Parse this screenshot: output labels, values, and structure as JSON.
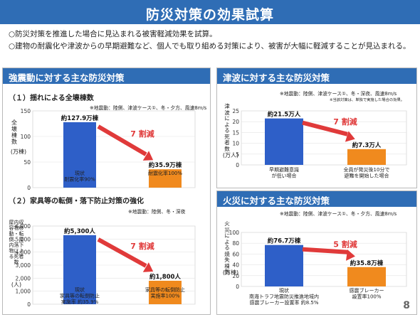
{
  "title": "防災対策の効果試算",
  "intro": [
    "○防災対策を推進した場合に見込まれる被害軽減効果を試算。",
    "○建物の耐震化や津波からの早期避難など、個人でも取り組める対策により、被害が大幅に軽減することが見込まれる。"
  ],
  "colors": {
    "accent": "#2f6db5",
    "bar_blue": "#2e5fc8",
    "bar_orange": "#f08a1e",
    "arrow_red": "#e03a3a"
  },
  "panels": {
    "quake": {
      "heading": "強震動に対する主な防災対策",
      "sub1": "（１）揺れによる全壊棟数",
      "note1": "※地震動：陸側、津波ケース①、冬・夕方、風速8m/s",
      "ylabel1": "全壊棟数",
      "yunit1": "(万棟)",
      "sub2": "（２）家具等の転倒・落下防止対策の強化",
      "note2": "※地震動：陸側、冬・深夜",
      "ylabel2": "屋内収容物移動・転倒、屋内落下物による死者数",
      "yunit2": "(人)"
    },
    "tsunami": {
      "heading": "津波に対する主な防災対策",
      "note": "※地震動：陸側、津波ケース①、冬・深夜、風速8m/s",
      "note_b": "※当該対策は、単独で実施した場合の効果。",
      "ylabel": "津波による死者数",
      "yunit": "(万人)"
    },
    "fire": {
      "heading": "火災に対する主な防災対策",
      "note": "※地震動：陸側、津波ケース①、冬・夕方、風速8m/s",
      "ylabel": "火災による焼失棟数",
      "yunit": "(万棟)"
    }
  },
  "chart_data": [
    {
      "type": "bar",
      "categories": [
        "現状\n耐震化率90%",
        "耐震化率100%"
      ],
      "values": [
        127.9,
        35.9
      ],
      "value_labels": [
        "約127.9万棟",
        "約35.9万棟"
      ],
      "ylim": [
        0,
        150
      ],
      "yticks": [
        0,
        50,
        100,
        150
      ],
      "reduction_label": "7 割減"
    },
    {
      "type": "bar",
      "categories": [
        "現状\n家具等の転倒防止\n実施率 約35.9%",
        "家具等の転倒防止\n実施率100%"
      ],
      "values": [
        5300,
        1800
      ],
      "value_labels": [
        "約5,300人",
        "約1,800人"
      ],
      "ylim": [
        0,
        6000
      ],
      "yticks": [
        0,
        1000,
        2000,
        3000,
        4000,
        5000,
        6000
      ],
      "reduction_label": "7 割減"
    },
    {
      "type": "bar",
      "categories": [
        "早期避難意識\nが低い場合",
        "全員が発災後10分で\n避難を開始した場合"
      ],
      "values": [
        21.5,
        7.3
      ],
      "value_labels": [
        "約21.5万人",
        "約7.3万人"
      ],
      "ylim": [
        0,
        25
      ],
      "yticks": [
        0,
        5,
        10,
        15,
        20,
        25
      ],
      "reduction_label": "7 割減"
    },
    {
      "type": "bar",
      "categories": [
        "現状\n南海トラフ地震防災推進地域内\n感震ブレーカー設置率 約8.5%",
        "感震ブレーカー\n設置率100%"
      ],
      "values": [
        76.7,
        35.8
      ],
      "value_labels": [
        "約76.7万棟",
        "約35.8万棟"
      ],
      "ylim": [
        0,
        100
      ],
      "yticks": [
        0,
        20,
        40,
        60,
        80,
        100
      ],
      "reduction_label": "5 割減"
    }
  ],
  "page_number": "8"
}
